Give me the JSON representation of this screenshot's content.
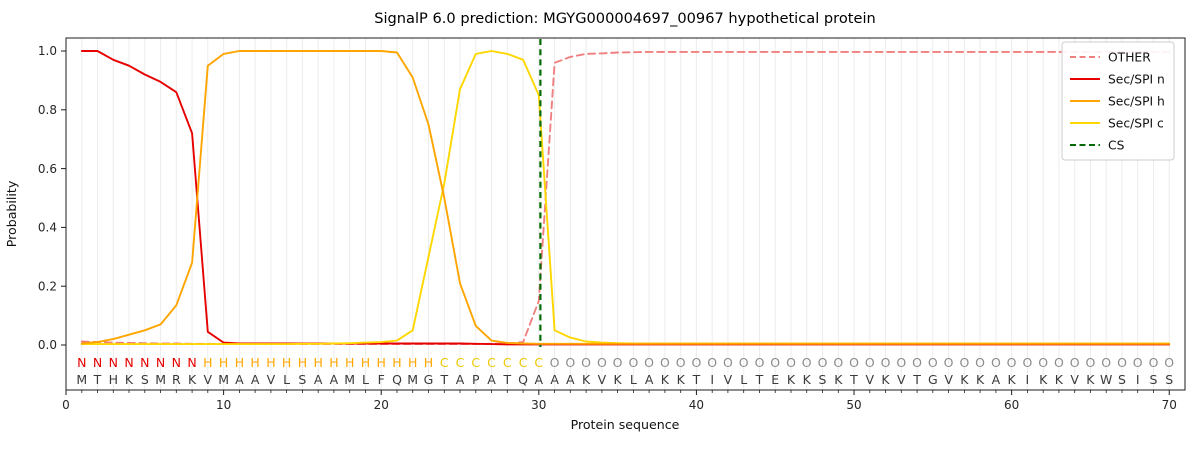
{
  "figure": {
    "title": "SignalP 6.0 prediction: MGYG000004697_00967 hypothetical protein"
  },
  "chart_data": {
    "type": "line",
    "title": "SignalP 6.0 prediction: MGYG000004697_00967 hypothetical protein",
    "xlabel": "Protein sequence",
    "ylabel": "Probability",
    "xlim": [
      0,
      71
    ],
    "ylim": [
      0,
      1
    ],
    "xticks": [
      0,
      10,
      20,
      30,
      40,
      50,
      60,
      70
    ],
    "yticks": [
      0.0,
      0.2,
      0.4,
      0.6,
      0.8,
      1.0
    ],
    "ytick_labels": [
      "0.0",
      "0.2",
      "0.4",
      "0.6",
      "0.8",
      "1.0"
    ],
    "grid": "light vertical gridline at every residue position",
    "legend_position": "upper right",
    "x_start": 1,
    "series": [
      {
        "name": "OTHER",
        "color": "#f08080",
        "dashed": true,
        "values": [
          0.012,
          0.01,
          0.008,
          0.007,
          0.006,
          0.005,
          0.005,
          0.004,
          0.004,
          0.003,
          0.003,
          0.003,
          0.003,
          0.003,
          0.003,
          0.003,
          0.003,
          0.003,
          0.003,
          0.003,
          0.003,
          0.003,
          0.003,
          0.003,
          0.003,
          0.003,
          0.004,
          0.005,
          0.01,
          0.15,
          0.96,
          0.98,
          0.99,
          0.992,
          0.995,
          0.996,
          0.997,
          0.997,
          0.997,
          0.997,
          0.997,
          0.997,
          0.997,
          0.997,
          0.997,
          0.997,
          0.997,
          0.997,
          0.997,
          0.997,
          0.997,
          0.997,
          0.997,
          0.997,
          0.997,
          0.997,
          0.997,
          0.997,
          0.997,
          0.997,
          0.997,
          0.997,
          0.997,
          0.997,
          0.997,
          0.997,
          0.997,
          0.997,
          0.997,
          0.997
        ]
      },
      {
        "name": "Sec/SPI n",
        "color": "#e60000",
        "dashed": false,
        "values": [
          1.0,
          1.0,
          0.97,
          0.95,
          0.92,
          0.895,
          0.86,
          0.72,
          0.045,
          0.008,
          0.005,
          0.005,
          0.005,
          0.005,
          0.005,
          0.005,
          0.005,
          0.005,
          0.005,
          0.005,
          0.005,
          0.005,
          0.005,
          0.005,
          0.005,
          0.004,
          0.003,
          0.002,
          0.002,
          0.002,
          0.002,
          0.002,
          0.002,
          0.002,
          0.002,
          0.002,
          0.002,
          0.002,
          0.002,
          0.002,
          0.002,
          0.002,
          0.002,
          0.002,
          0.002,
          0.002,
          0.002,
          0.002,
          0.002,
          0.002,
          0.002,
          0.002,
          0.002,
          0.002,
          0.002,
          0.002,
          0.002,
          0.002,
          0.002,
          0.002,
          0.002,
          0.002,
          0.002,
          0.002,
          0.002,
          0.002,
          0.002,
          0.002,
          0.002,
          0.002
        ]
      },
      {
        "name": "Sec/SPI h",
        "color": "#ffa500",
        "dashed": false,
        "values": [
          0.005,
          0.01,
          0.02,
          0.035,
          0.05,
          0.07,
          0.135,
          0.28,
          0.95,
          0.99,
          1.0,
          1.0,
          1.0,
          1.0,
          1.0,
          1.0,
          1.0,
          1.0,
          1.0,
          1.0,
          0.995,
          0.91,
          0.75,
          0.5,
          0.21,
          0.065,
          0.015,
          0.007,
          0.005,
          0.004,
          0.004,
          0.004,
          0.004,
          0.004,
          0.004,
          0.004,
          0.004,
          0.004,
          0.004,
          0.004,
          0.004,
          0.004,
          0.004,
          0.004,
          0.004,
          0.004,
          0.004,
          0.004,
          0.004,
          0.004,
          0.004,
          0.004,
          0.004,
          0.004,
          0.004,
          0.004,
          0.004,
          0.004,
          0.004,
          0.004,
          0.004,
          0.004,
          0.004,
          0.004,
          0.004,
          0.004,
          0.004,
          0.004,
          0.004,
          0.004
        ]
      },
      {
        "name": "Sec/SPI c",
        "color": "#ffd700",
        "dashed": false,
        "values": [
          0.003,
          0.003,
          0.003,
          0.003,
          0.003,
          0.003,
          0.003,
          0.003,
          0.003,
          0.003,
          0.003,
          0.003,
          0.003,
          0.003,
          0.004,
          0.004,
          0.005,
          0.006,
          0.008,
          0.01,
          0.015,
          0.05,
          0.3,
          0.55,
          0.87,
          0.99,
          1.0,
          0.99,
          0.97,
          0.85,
          0.05,
          0.025,
          0.012,
          0.008,
          0.006,
          0.005,
          0.005,
          0.005,
          0.005,
          0.005,
          0.005,
          0.005,
          0.005,
          0.005,
          0.005,
          0.005,
          0.005,
          0.005,
          0.005,
          0.005,
          0.005,
          0.005,
          0.005,
          0.005,
          0.005,
          0.005,
          0.005,
          0.005,
          0.005,
          0.005,
          0.005,
          0.005,
          0.005,
          0.005,
          0.005,
          0.005,
          0.005,
          0.005,
          0.005,
          0.005
        ]
      }
    ],
    "cs_marker": {
      "label": "CS",
      "x": 30.1,
      "color": "#056b05",
      "dashed": true,
      "note": "cleavage site between residue 30 and 31"
    },
    "sequence": "MTHKSMRKVMAAVLSAAMLFQMGTAPATQAAAKVKLAKKTIVLTEKKSKTVKVTGVKKAKIKKVKWSISS",
    "regions": "NNNNNNNNHHHHHHHHHHHHHHHCCCCCCCOOOOOOOOOOOOOOOOOOOOOOOOOOOOOOOOOOOOOOOO",
    "region_colors": {
      "N": "#e60000",
      "H": "#ffa500",
      "C": "#eec800",
      "O": "#8c8c8c"
    },
    "sequence_color": "#3a3a3a",
    "colors": {
      "grid": "#ececec",
      "spine": "#1c1c1c",
      "legend_border": "#cccccc",
      "legend_bg": "#ffffff"
    }
  }
}
